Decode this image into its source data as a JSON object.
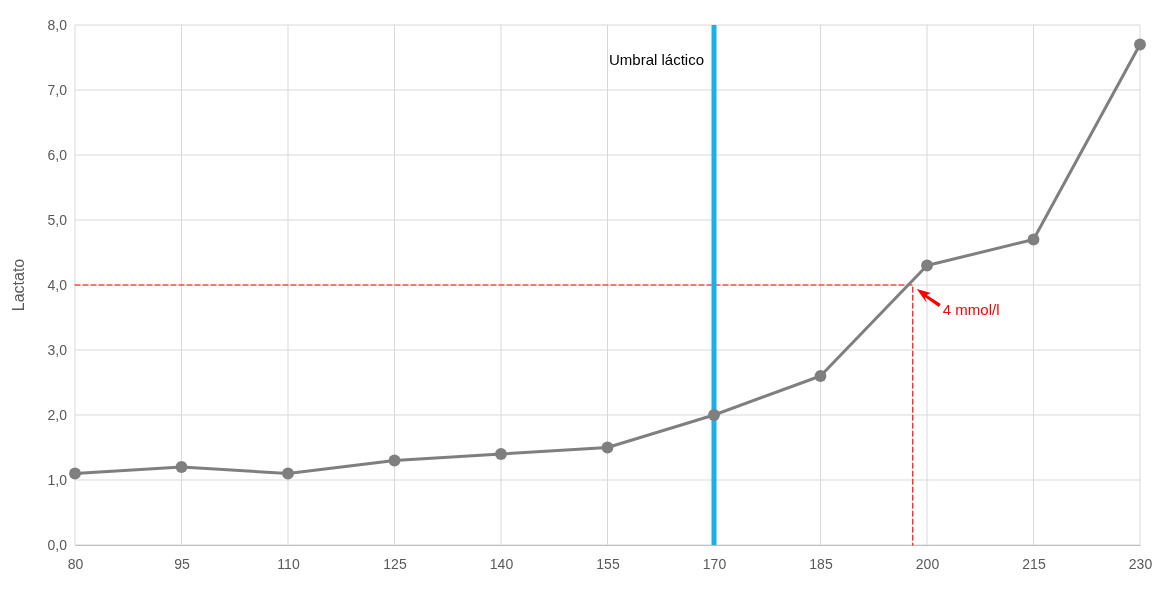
{
  "chart_data": {
    "type": "line",
    "ylabel": "Lactato",
    "xlim": [
      80,
      230
    ],
    "xticks": [
      80,
      95,
      110,
      125,
      140,
      155,
      170,
      185,
      200,
      215,
      230
    ],
    "ylim": [
      0,
      8
    ],
    "yticks": [
      {
        "value": 0,
        "label": "0,0"
      },
      {
        "value": 1,
        "label": "1,0"
      },
      {
        "value": 2,
        "label": "2,0"
      },
      {
        "value": 3,
        "label": "3,0"
      },
      {
        "value": 4,
        "label": "4,0"
      },
      {
        "value": 5,
        "label": "5,0"
      },
      {
        "value": 6,
        "label": "6,0"
      },
      {
        "value": 7,
        "label": "7,0"
      },
      {
        "value": 8,
        "label": "8,0"
      }
    ],
    "grid": true,
    "series": [
      {
        "color": "#7f7f7f",
        "marker": "circle",
        "line_style": "solid",
        "x": [
          80,
          95,
          110,
          125,
          140,
          155,
          170,
          185,
          200,
          215,
          230
        ],
        "values": [
          1.1,
          1.2,
          1.1,
          1.3,
          1.4,
          1.5,
          2.0,
          2.6,
          4.3,
          4.7,
          7.7
        ]
      },
      {
        "color": "#ff0000",
        "marker": "none",
        "line_style": "dashed",
        "x": [
          80,
          198,
          198
        ],
        "values": [
          4,
          4,
          0
        ]
      }
    ],
    "ref_lines": [
      {
        "axis": "x",
        "value": 170,
        "label": "Umbral láctico",
        "color": "#1ab0e8"
      }
    ],
    "annotations": [
      {
        "text": "4 mmol/l",
        "x": 198,
        "y": 4
      }
    ]
  }
}
